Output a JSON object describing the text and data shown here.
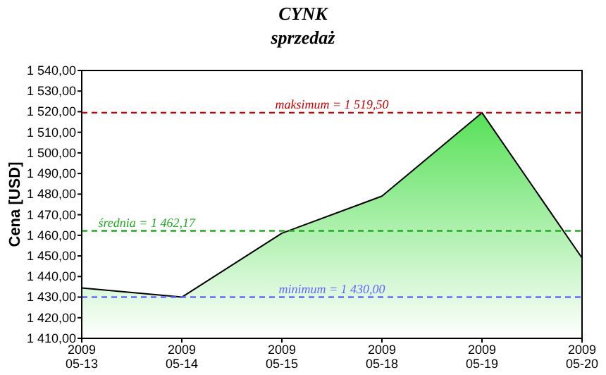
{
  "chart_data": {
    "type": "area",
    "title": "CYNK",
    "subtitle": "sprzedaż",
    "ylabel": "Cena [USD]",
    "categories": [
      "2009\n05-13",
      "2009\n05-14",
      "2009\n05-15",
      "2009\n05-18",
      "2009\n05-19",
      "2009\n05-20"
    ],
    "series": [
      {
        "color": "#44dd44",
        "values": [
          1434.5,
          1430,
          1461,
          1479,
          1519.5,
          1449
        ]
      }
    ],
    "ylim": [
      1410,
      1540
    ],
    "yticks": [
      {
        "value": 1410,
        "label": "1 410,00"
      },
      {
        "value": 1420,
        "label": "1 420,00"
      },
      {
        "value": 1430,
        "label": "1 430,00"
      },
      {
        "value": 1440,
        "label": "1 440,00"
      },
      {
        "value": 1450,
        "label": "1 450,00"
      },
      {
        "value": 1460,
        "label": "1 460,00"
      },
      {
        "value": 1470,
        "label": "1 470,00"
      },
      {
        "value": 1480,
        "label": "1 480,00"
      },
      {
        "value": 1490,
        "label": "1 490,00"
      },
      {
        "value": 1500,
        "label": "1 500,00"
      },
      {
        "value": 1510,
        "label": "1 510,00"
      },
      {
        "value": 1520,
        "label": "1 520,00"
      },
      {
        "value": 1530,
        "label": "1 530,00"
      },
      {
        "value": 1540,
        "label": "1 540,00"
      }
    ],
    "ref_lines": [
      {
        "axis": "y",
        "value": 1519.5,
        "label": "maksimum = 1 519,50",
        "color": "#cc0000",
        "line_style": "dashed"
      },
      {
        "axis": "y",
        "value": 1462.17,
        "label": "średnia = 1 462,17",
        "color": "#22aa22",
        "line_style": "dashed"
      },
      {
        "axis": "y",
        "value": 1430,
        "label": "minimum = 1 430,00",
        "color": "#6666ff",
        "line_style": "dashed"
      }
    ],
    "grid": false
  }
}
